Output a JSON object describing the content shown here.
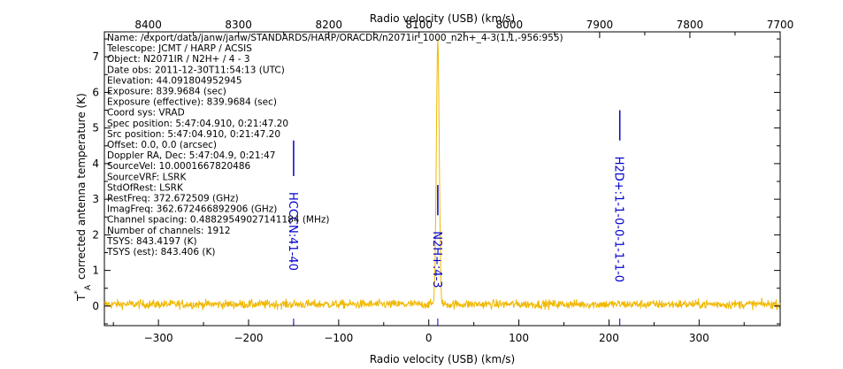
{
  "chart_data": {
    "type": "line",
    "title": "",
    "xlabel": "Radio velocity (USB) (km/s)",
    "top_xlabel": "Radio velocity (USB) (km/s)",
    "ylabel": "T*A corrected antenna temperature (K)",
    "ylabel_prefix": "T",
    "ylabel_sup": "*",
    "ylabel_sub": "A",
    "ylabel_text": "corrected antenna temperature (K)",
    "xlim": [
      -360,
      390
    ],
    "ylim": [
      -0.55,
      7.7
    ],
    "top_xlim": [
      8448.6,
      7700.0
    ],
    "x_ticks": [
      -300,
      -200,
      -100,
      0,
      100,
      200,
      300
    ],
    "x_tick_labels": [
      "−300",
      "−200",
      "−100",
      "0",
      "100",
      "200",
      "300"
    ],
    "top_x_ticks": [
      8400,
      8300,
      8200,
      8100,
      8000,
      7900,
      7800,
      7700
    ],
    "top_x_tick_labels": [
      "8400",
      "8300",
      "8200",
      "8100",
      "8000",
      "7900",
      "7800",
      "7700"
    ],
    "y_ticks": [
      0,
      1,
      2,
      3,
      4,
      5,
      6,
      7
    ],
    "y_tick_labels": [
      "0",
      "1",
      "2",
      "3",
      "4",
      "5",
      "6",
      "7"
    ],
    "grid": false,
    "series": [
      {
        "color": "#f0b800",
        "noise_sigma": 0.12,
        "baseline": 0.05,
        "peak": {
          "x": 10.0,
          "y": 7.4,
          "width": 1.6
        }
      }
    ],
    "line_markers": [
      {
        "name": "HCCCN:41-40",
        "x": -150,
        "y0": 3.65,
        "y1": 4.65
      },
      {
        "name": "N2H+:4-3",
        "x": 10,
        "y0": 2.55,
        "y1": 3.4
      },
      {
        "name": "H2D+:1-1-0-0-1-1-1-0",
        "x": 212,
        "y0": 4.65,
        "y1": 5.5
      }
    ],
    "metadata_lines": [
      "Name: /export/data/janw/janw/STANDARDS/HARP/ORACDR/n2071ir_1000_n2h+_4-3(1,1,-956:955)",
      "Telescope: JCMT / HARP / ACSIS",
      "Object: N2071IR / N2H+ / 4 - 3",
      "Date obs: 2011-12-30T11:54:13 (UTC)",
      "Elevation: 44.091804952945",
      "Exposure: 839.9684 (sec)",
      "Exposure (effective): 839.9684 (sec)",
      "Coord sys: VRAD",
      "Spec position: 5:47:04.910, 0:21:47.20",
      "Src position: 5:47:04.910, 0:21:47.20",
      "Offset: 0.0, 0.0 (arcsec)",
      "Doppler RA, Dec: 5:47:04.9, 0:21:47",
      "SourceVel: 10.0001667820486",
      "SourceVRF: LSRK",
      "StdOfRest: LSRK",
      "RestFreq: 372.672509 (GHz)",
      "ImagFreq: 362.672466892906 (GHz)",
      "Channel spacing: 0.48829549027141184 (MHz)",
      "Number of channels: 1912",
      "TSYS: 843.4197 (K)",
      "TSYS (est): 843.406 (K)"
    ]
  }
}
